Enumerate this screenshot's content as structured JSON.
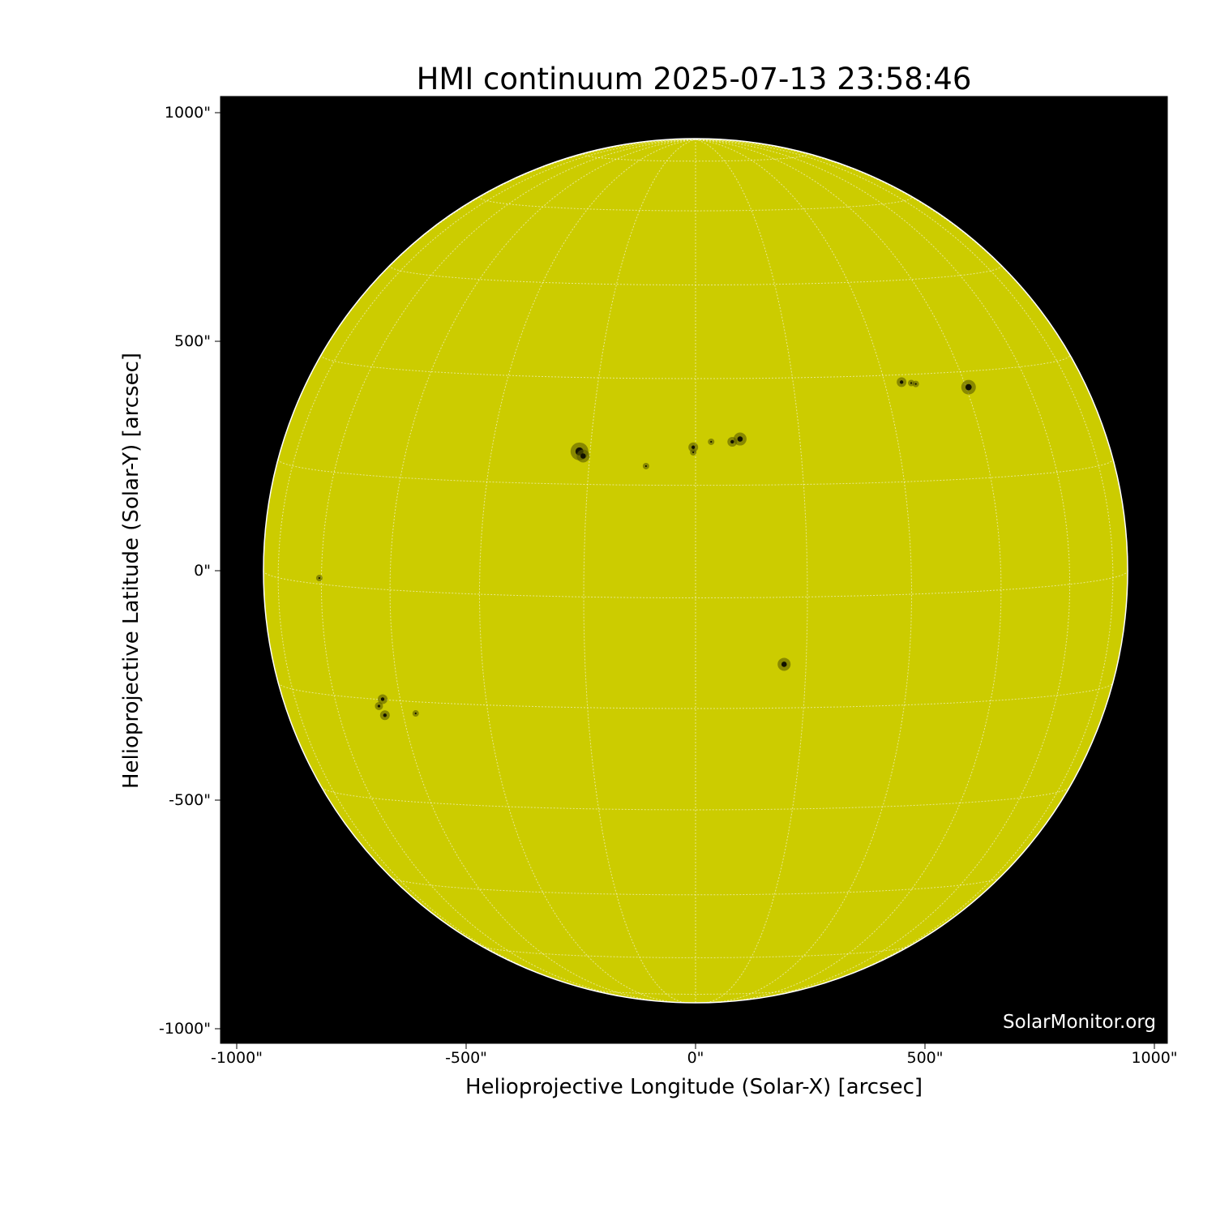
{
  "title": "HMI continuum 2025-07-13 23:58:46",
  "xlabel": "Helioprojective Longitude (Solar-X) [arcsec]",
  "ylabel": "Helioprojective Latitude (Solar-Y) [arcsec]",
  "x_ticks": [
    "-1000\"",
    "-500\"",
    "0\"",
    "500\"",
    "1000\""
  ],
  "y_ticks": [
    "1000\"",
    "500\"",
    "0\"",
    "-500\"",
    "-1000\""
  ],
  "watermark": "SolarMonitor.org",
  "colors": {
    "disk": "#cccc00",
    "background": "#000000",
    "grid": "#ffffff"
  }
}
